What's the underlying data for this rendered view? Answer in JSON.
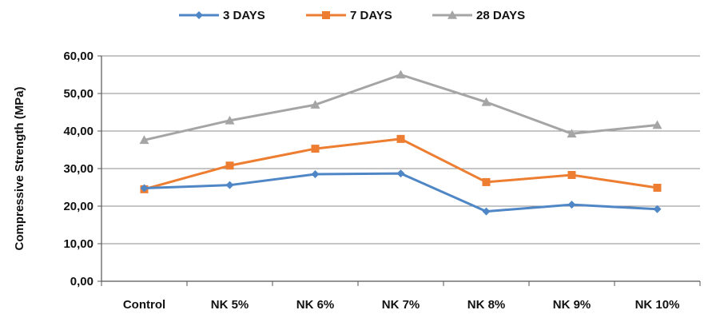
{
  "chart_data": {
    "type": "line",
    "title": "",
    "xlabel": "",
    "ylabel": "Compressive Strength (MPa)",
    "categories": [
      "Control",
      "NK 5%",
      "NK 6%",
      "NK 7%",
      "NK 8%",
      "NK 9%",
      "NK 10%"
    ],
    "ylim": [
      0,
      60
    ],
    "yticks": [
      "0,00",
      "10,00",
      "20,00",
      "30,00",
      "40,00",
      "50,00",
      "60,00"
    ],
    "grid": "horizontal",
    "legend_position": "top",
    "series": [
      {
        "name": "3 DAYS",
        "color": "#4F86C6",
        "marker": "diamond",
        "values": [
          24.8,
          25.6,
          28.5,
          28.7,
          18.6,
          20.4,
          19.2
        ]
      },
      {
        "name": "7 DAYS",
        "color": "#ED7D31",
        "marker": "square",
        "values": [
          24.5,
          30.8,
          35.3,
          37.9,
          26.4,
          28.3,
          24.9
        ]
      },
      {
        "name": "28 DAYS",
        "color": "#A5A5A5",
        "marker": "triangle",
        "values": [
          37.6,
          42.8,
          47.0,
          55.0,
          47.7,
          39.3,
          41.6
        ]
      }
    ]
  }
}
